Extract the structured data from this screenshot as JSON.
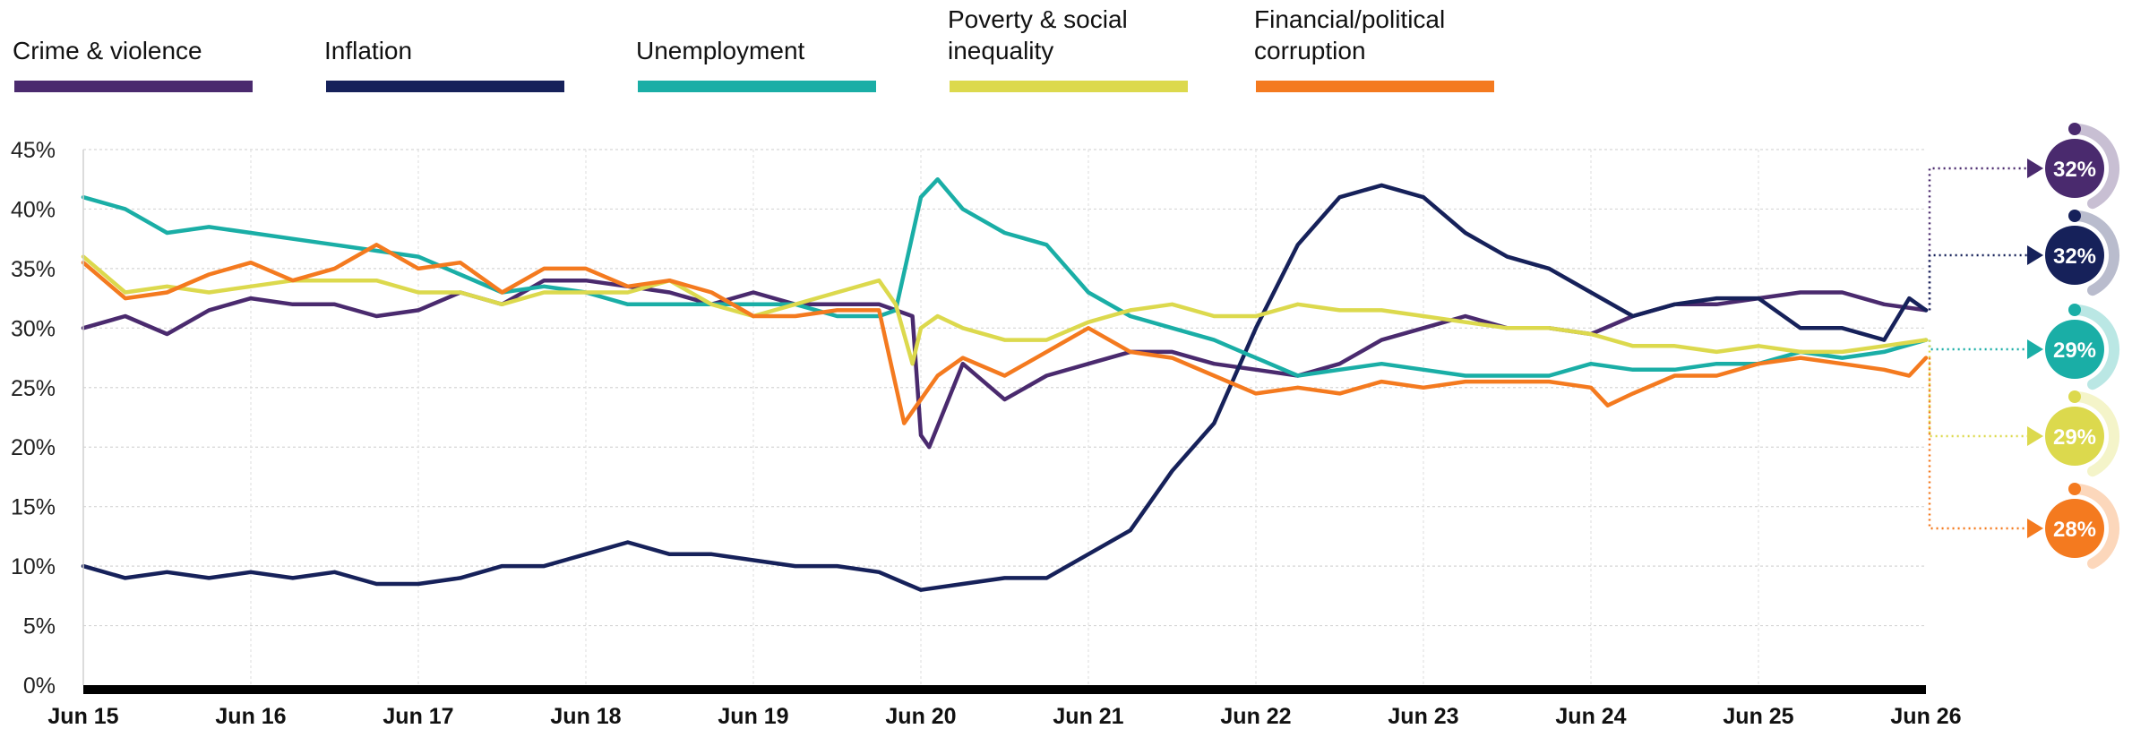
{
  "chart_data": {
    "type": "line",
    "title": "",
    "xlabel": "",
    "ylabel": "",
    "ylim": [
      0,
      45
    ],
    "y_unit": "%",
    "y_ticks": [
      0,
      5,
      10,
      15,
      20,
      25,
      30,
      35,
      40,
      45
    ],
    "y_tick_labels": [
      "0%",
      "5%",
      "10%",
      "15%",
      "20%",
      "25%",
      "30%",
      "35%",
      "40%",
      "45%"
    ],
    "x_tick_labels": [
      "Jun 15",
      "Jun 16",
      "Jun 17",
      "Jun 18",
      "Jun 19",
      "Jun 20",
      "Jun 21",
      "Jun 22",
      "Jun 23",
      "Jun 24",
      "Jun 25",
      "Jun 26"
    ],
    "grid": true,
    "legend_position": "top",
    "series": [
      {
        "name": "Crime & violence",
        "legend_lines": [
          "Crime & violence"
        ],
        "color": "#4a2a6e",
        "latest": "32%",
        "points": [
          [
            0,
            30
          ],
          [
            0.25,
            31
          ],
          [
            0.5,
            29.5
          ],
          [
            0.75,
            31.5
          ],
          [
            1,
            32.5
          ],
          [
            1.25,
            32
          ],
          [
            1.5,
            32
          ],
          [
            1.75,
            31
          ],
          [
            2,
            31.5
          ],
          [
            2.25,
            33
          ],
          [
            2.5,
            32
          ],
          [
            2.75,
            34
          ],
          [
            3,
            34
          ],
          [
            3.25,
            33.5
          ],
          [
            3.5,
            33
          ],
          [
            3.75,
            32
          ],
          [
            4,
            33
          ],
          [
            4.25,
            32
          ],
          [
            4.5,
            32
          ],
          [
            4.75,
            32
          ],
          [
            4.95,
            31
          ],
          [
            5,
            21
          ],
          [
            5.05,
            20
          ],
          [
            5.25,
            27
          ],
          [
            5.5,
            24
          ],
          [
            5.75,
            26
          ],
          [
            6,
            27
          ],
          [
            6.25,
            28
          ],
          [
            6.5,
            28
          ],
          [
            6.75,
            27
          ],
          [
            7,
            26.5
          ],
          [
            7.25,
            26
          ],
          [
            7.5,
            27
          ],
          [
            7.75,
            29
          ],
          [
            8,
            30
          ],
          [
            8.25,
            31
          ],
          [
            8.5,
            30
          ],
          [
            8.75,
            30
          ],
          [
            9,
            29.5
          ],
          [
            9.25,
            31
          ],
          [
            9.5,
            32
          ],
          [
            9.75,
            32
          ],
          [
            10,
            32.5
          ],
          [
            10.25,
            33
          ],
          [
            10.5,
            33
          ],
          [
            10.75,
            32
          ],
          [
            11,
            31.5
          ]
        ]
      },
      {
        "name": "Inflation",
        "legend_lines": [
          "Inflation"
        ],
        "color": "#16215a",
        "latest": "32%",
        "points": [
          [
            0,
            10
          ],
          [
            0.25,
            9
          ],
          [
            0.5,
            9.5
          ],
          [
            0.75,
            9
          ],
          [
            1,
            9.5
          ],
          [
            1.25,
            9
          ],
          [
            1.5,
            9.5
          ],
          [
            1.75,
            8.5
          ],
          [
            2,
            8.5
          ],
          [
            2.25,
            9
          ],
          [
            2.5,
            10
          ],
          [
            2.75,
            10
          ],
          [
            3,
            11
          ],
          [
            3.25,
            12
          ],
          [
            3.5,
            11
          ],
          [
            3.75,
            11
          ],
          [
            4,
            10.5
          ],
          [
            4.25,
            10
          ],
          [
            4.5,
            10
          ],
          [
            4.75,
            9.5
          ],
          [
            5,
            8
          ],
          [
            5.25,
            8.5
          ],
          [
            5.5,
            9
          ],
          [
            5.75,
            9
          ],
          [
            6,
            11
          ],
          [
            6.25,
            13
          ],
          [
            6.5,
            18
          ],
          [
            6.75,
            22
          ],
          [
            7,
            30
          ],
          [
            7.25,
            37
          ],
          [
            7.5,
            41
          ],
          [
            7.75,
            42
          ],
          [
            8,
            41
          ],
          [
            8.25,
            38
          ],
          [
            8.5,
            36
          ],
          [
            8.75,
            35
          ],
          [
            9,
            33
          ],
          [
            9.25,
            31
          ],
          [
            9.5,
            32
          ],
          [
            9.75,
            32.5
          ],
          [
            10,
            32.5
          ],
          [
            10.25,
            30
          ],
          [
            10.5,
            30
          ],
          [
            10.75,
            29
          ],
          [
            10.9,
            32.5
          ],
          [
            11,
            31.5
          ]
        ]
      },
      {
        "name": "Unemployment",
        "legend_lines": [
          "Unemployment"
        ],
        "color": "#1aaea6",
        "latest": "29%",
        "points": [
          [
            0,
            41
          ],
          [
            0.25,
            40
          ],
          [
            0.5,
            38
          ],
          [
            0.75,
            38.5
          ],
          [
            1,
            38
          ],
          [
            1.25,
            37.5
          ],
          [
            1.5,
            37
          ],
          [
            1.75,
            36.5
          ],
          [
            2,
            36
          ],
          [
            2.25,
            34.5
          ],
          [
            2.5,
            33
          ],
          [
            2.75,
            33.5
          ],
          [
            3,
            33
          ],
          [
            3.25,
            32
          ],
          [
            3.5,
            32
          ],
          [
            3.75,
            32
          ],
          [
            4,
            32
          ],
          [
            4.25,
            32
          ],
          [
            4.5,
            31
          ],
          [
            4.75,
            31
          ],
          [
            4.85,
            31.5
          ],
          [
            5,
            41
          ],
          [
            5.1,
            42.5
          ],
          [
            5.25,
            40
          ],
          [
            5.5,
            38
          ],
          [
            5.75,
            37
          ],
          [
            6,
            33
          ],
          [
            6.25,
            31
          ],
          [
            6.5,
            30
          ],
          [
            6.75,
            29
          ],
          [
            7,
            27.5
          ],
          [
            7.25,
            26
          ],
          [
            7.5,
            26.5
          ],
          [
            7.75,
            27
          ],
          [
            8,
            26.5
          ],
          [
            8.25,
            26
          ],
          [
            8.5,
            26
          ],
          [
            8.75,
            26
          ],
          [
            9,
            27
          ],
          [
            9.25,
            26.5
          ],
          [
            9.5,
            26.5
          ],
          [
            9.75,
            27
          ],
          [
            10,
            27
          ],
          [
            10.25,
            28
          ],
          [
            10.5,
            27.5
          ],
          [
            10.75,
            28
          ],
          [
            11,
            29
          ]
        ]
      },
      {
        "name": "Poverty & social inequality",
        "legend_lines": [
          "Poverty & social",
          "inequality"
        ],
        "color": "#dcd94d",
        "latest": "29%",
        "points": [
          [
            0,
            36
          ],
          [
            0.25,
            33
          ],
          [
            0.5,
            33.5
          ],
          [
            0.75,
            33
          ],
          [
            1,
            33.5
          ],
          [
            1.25,
            34
          ],
          [
            1.5,
            34
          ],
          [
            1.75,
            34
          ],
          [
            2,
            33
          ],
          [
            2.25,
            33
          ],
          [
            2.5,
            32
          ],
          [
            2.75,
            33
          ],
          [
            3,
            33
          ],
          [
            3.25,
            33
          ],
          [
            3.5,
            34
          ],
          [
            3.75,
            32
          ],
          [
            4,
            31
          ],
          [
            4.25,
            32
          ],
          [
            4.5,
            33
          ],
          [
            4.75,
            34
          ],
          [
            4.85,
            32
          ],
          [
            4.95,
            27
          ],
          [
            5,
            30
          ],
          [
            5.1,
            31
          ],
          [
            5.25,
            30
          ],
          [
            5.5,
            29
          ],
          [
            5.75,
            29
          ],
          [
            6,
            30.5
          ],
          [
            6.25,
            31.5
          ],
          [
            6.5,
            32
          ],
          [
            6.75,
            31
          ],
          [
            7,
            31
          ],
          [
            7.25,
            32
          ],
          [
            7.5,
            31.5
          ],
          [
            7.75,
            31.5
          ],
          [
            8,
            31
          ],
          [
            8.25,
            30.5
          ],
          [
            8.5,
            30
          ],
          [
            8.75,
            30
          ],
          [
            9,
            29.5
          ],
          [
            9.25,
            28.5
          ],
          [
            9.5,
            28.5
          ],
          [
            9.75,
            28
          ],
          [
            10,
            28.5
          ],
          [
            10.25,
            28
          ],
          [
            10.5,
            28
          ],
          [
            10.75,
            28.5
          ],
          [
            11,
            29
          ]
        ]
      },
      {
        "name": "Financial/political corruption",
        "legend_lines": [
          "Financial/political",
          "corruption"
        ],
        "color": "#f47a1f",
        "latest": "28%",
        "points": [
          [
            0,
            35.5
          ],
          [
            0.25,
            32.5
          ],
          [
            0.5,
            33
          ],
          [
            0.75,
            34.5
          ],
          [
            1,
            35.5
          ],
          [
            1.25,
            34
          ],
          [
            1.5,
            35
          ],
          [
            1.75,
            37
          ],
          [
            2,
            35
          ],
          [
            2.25,
            35.5
          ],
          [
            2.5,
            33
          ],
          [
            2.75,
            35
          ],
          [
            3,
            35
          ],
          [
            3.25,
            33.5
          ],
          [
            3.5,
            34
          ],
          [
            3.75,
            33
          ],
          [
            4,
            31
          ],
          [
            4.25,
            31
          ],
          [
            4.5,
            31.5
          ],
          [
            4.75,
            31.5
          ],
          [
            4.9,
            22
          ],
          [
            5.1,
            26
          ],
          [
            5.25,
            27.5
          ],
          [
            5.5,
            26
          ],
          [
            5.75,
            28
          ],
          [
            6,
            30
          ],
          [
            6.25,
            28
          ],
          [
            6.5,
            27.5
          ],
          [
            6.75,
            26
          ],
          [
            7,
            24.5
          ],
          [
            7.25,
            25
          ],
          [
            7.5,
            24.5
          ],
          [
            7.75,
            25.5
          ],
          [
            8,
            25
          ],
          [
            8.25,
            25.5
          ],
          [
            8.5,
            25.5
          ],
          [
            8.75,
            25.5
          ],
          [
            9,
            25
          ],
          [
            9.1,
            23.5
          ],
          [
            9.25,
            24.5
          ],
          [
            9.5,
            26
          ],
          [
            9.75,
            26
          ],
          [
            10,
            27
          ],
          [
            10.25,
            27.5
          ],
          [
            10.5,
            27
          ],
          [
            10.75,
            26.5
          ],
          [
            10.9,
            26
          ],
          [
            11,
            27.5
          ]
        ]
      }
    ]
  }
}
